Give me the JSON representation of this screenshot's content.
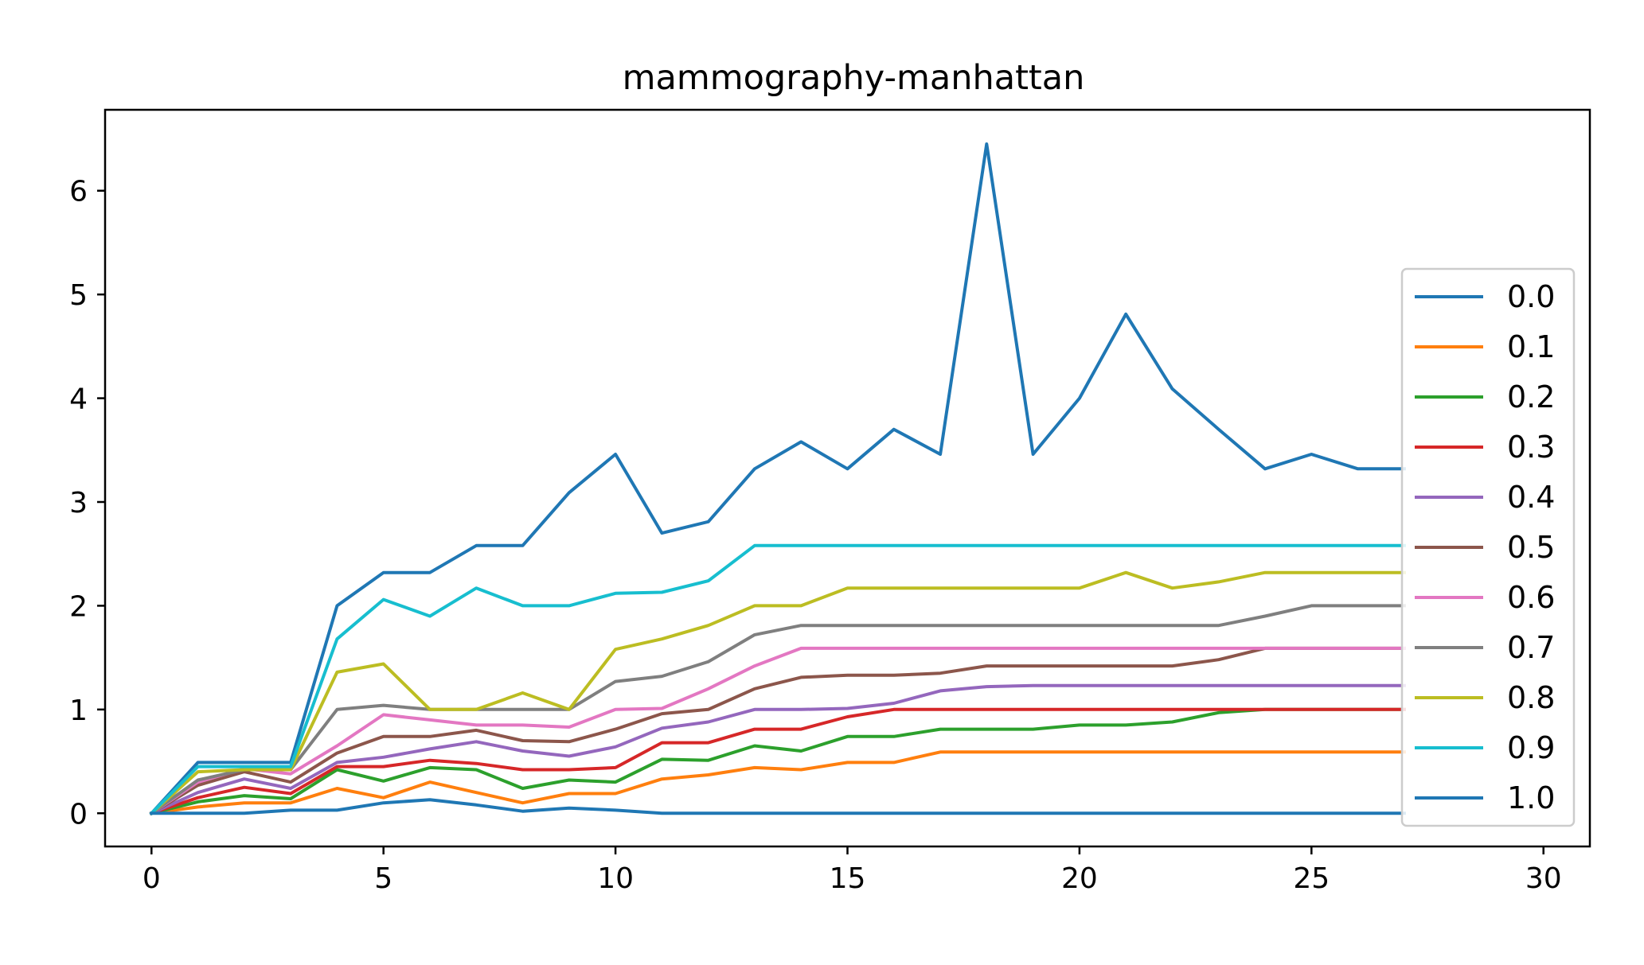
{
  "chart_data": {
    "type": "line",
    "title": "mammography-manhattan",
    "xlabel": "",
    "ylabel": "",
    "xlim": [
      -1,
      31
    ],
    "ylim": [
      -0.32,
      6.78
    ],
    "xticks": [
      0,
      5,
      10,
      15,
      20,
      25,
      30
    ],
    "yticks": [
      0,
      1,
      2,
      3,
      4,
      5,
      6
    ],
    "grid": false,
    "legend_position": "right",
    "x": [
      0,
      1,
      2,
      3,
      4,
      5,
      6,
      7,
      8,
      9,
      10,
      11,
      12,
      13,
      14,
      15,
      16,
      17,
      18,
      19,
      20,
      21,
      22,
      23,
      24,
      25,
      26,
      27
    ],
    "series": [
      {
        "name": "0.0",
        "color": "#1f77b4",
        "values": [
          0,
          0.49,
          0.49,
          0.49,
          2.0,
          2.32,
          2.32,
          2.58,
          2.58,
          3.09,
          3.46,
          2.7,
          2.81,
          3.32,
          3.58,
          3.32,
          3.7,
          3.46,
          6.45,
          3.46,
          4.0,
          4.81,
          4.09,
          3.7,
          3.32,
          3.46,
          3.32,
          3.32
        ]
      },
      {
        "name": "0.1",
        "color": "#ff7f0e",
        "values": [
          0,
          0.06,
          0.1,
          0.1,
          0.24,
          0.15,
          0.3,
          0.2,
          0.1,
          0.19,
          0.19,
          0.33,
          0.37,
          0.44,
          0.42,
          0.49,
          0.49,
          0.59,
          0.59,
          0.59,
          0.59,
          0.59,
          0.59,
          0.59,
          0.59,
          0.59,
          0.59,
          0.59
        ]
      },
      {
        "name": "0.2",
        "color": "#2ca02c",
        "values": [
          0,
          0.11,
          0.17,
          0.14,
          0.42,
          0.31,
          0.44,
          0.42,
          0.24,
          0.32,
          0.3,
          0.52,
          0.51,
          0.65,
          0.6,
          0.74,
          0.74,
          0.81,
          0.81,
          0.81,
          0.85,
          0.85,
          0.88,
          0.97,
          1.0,
          1.0,
          1.0,
          1.0
        ]
      },
      {
        "name": "0.3",
        "color": "#d62728",
        "values": [
          0,
          0.15,
          0.25,
          0.19,
          0.45,
          0.45,
          0.51,
          0.48,
          0.42,
          0.42,
          0.44,
          0.68,
          0.68,
          0.81,
          0.81,
          0.93,
          1.0,
          1.0,
          1.0,
          1.0,
          1.0,
          1.0,
          1.0,
          1.0,
          1.0,
          1.0,
          1.0,
          1.0
        ]
      },
      {
        "name": "0.4",
        "color": "#9467bd",
        "values": [
          0,
          0.2,
          0.33,
          0.24,
          0.49,
          0.54,
          0.62,
          0.69,
          0.6,
          0.55,
          0.64,
          0.82,
          0.88,
          1.0,
          1.0,
          1.01,
          1.06,
          1.18,
          1.22,
          1.23,
          1.23,
          1.23,
          1.23,
          1.23,
          1.23,
          1.23,
          1.23,
          1.23
        ]
      },
      {
        "name": "0.5",
        "color": "#8c564b",
        "values": [
          0,
          0.27,
          0.4,
          0.3,
          0.58,
          0.74,
          0.74,
          0.8,
          0.7,
          0.69,
          0.81,
          0.96,
          1.0,
          1.2,
          1.31,
          1.33,
          1.33,
          1.35,
          1.42,
          1.42,
          1.42,
          1.42,
          1.42,
          1.48,
          1.59,
          1.59,
          1.59,
          1.59
        ]
      },
      {
        "name": "0.6",
        "color": "#e377c2",
        "values": [
          0,
          0.3,
          0.43,
          0.38,
          0.65,
          0.95,
          0.9,
          0.85,
          0.85,
          0.83,
          1.0,
          1.01,
          1.2,
          1.42,
          1.59,
          1.59,
          1.59,
          1.59,
          1.59,
          1.59,
          1.59,
          1.59,
          1.59,
          1.59,
          1.59,
          1.59,
          1.59,
          1.59
        ]
      },
      {
        "name": "0.7",
        "color": "#7f7f7f",
        "values": [
          0,
          0.32,
          0.42,
          0.42,
          1.0,
          1.04,
          1.0,
          1.0,
          1.0,
          1.0,
          1.27,
          1.32,
          1.46,
          1.72,
          1.81,
          1.81,
          1.81,
          1.81,
          1.81,
          1.81,
          1.81,
          1.81,
          1.81,
          1.81,
          1.9,
          2.0,
          2.0,
          2.0
        ]
      },
      {
        "name": "0.8",
        "color": "#bcbd22",
        "values": [
          0,
          0.4,
          0.42,
          0.42,
          1.36,
          1.44,
          1.0,
          1.0,
          1.16,
          1.0,
          1.58,
          1.68,
          1.81,
          2.0,
          2.0,
          2.17,
          2.17,
          2.17,
          2.17,
          2.17,
          2.17,
          2.32,
          2.17,
          2.23,
          2.32,
          2.32,
          2.32,
          2.32
        ]
      },
      {
        "name": "0.9",
        "color": "#17becf",
        "values": [
          0,
          0.45,
          0.45,
          0.45,
          1.68,
          2.06,
          1.9,
          2.17,
          2.0,
          2.0,
          2.12,
          2.13,
          2.24,
          2.58,
          2.58,
          2.58,
          2.58,
          2.58,
          2.58,
          2.58,
          2.58,
          2.58,
          2.58,
          2.58,
          2.58,
          2.58,
          2.58,
          2.58
        ]
      },
      {
        "name": "1.0",
        "color": "#1f77b4",
        "values": [
          0,
          0.0,
          0.0,
          0.03,
          0.03,
          0.1,
          0.13,
          0.08,
          0.02,
          0.05,
          0.03,
          0,
          0,
          0,
          0,
          0,
          0,
          0,
          0,
          0,
          0,
          0,
          0,
          0,
          0,
          0,
          0,
          0
        ]
      }
    ]
  }
}
